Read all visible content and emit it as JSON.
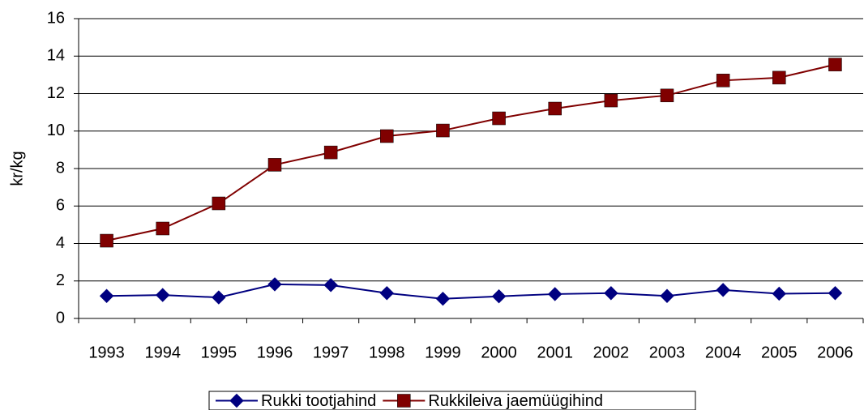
{
  "chart_data": {
    "type": "line",
    "y_label": "kr/kg",
    "categories": [
      "1993",
      "1994",
      "1995",
      "1996",
      "1997",
      "1998",
      "1999",
      "2000",
      "2001",
      "2002",
      "2003",
      "2004",
      "2005",
      "2006"
    ],
    "series": [
      {
        "name": "Rukki tootjahind",
        "color": "#000080",
        "marker": "diamond",
        "values": [
          1.2,
          1.25,
          1.12,
          1.82,
          1.78,
          1.35,
          1.05,
          1.18,
          1.3,
          1.35,
          1.2,
          1.52,
          1.32,
          1.35
        ]
      },
      {
        "name": "Rukkileiva jaemüügihind",
        "color": "#800000",
        "marker": "square",
        "values": [
          4.15,
          4.8,
          6.14,
          8.2,
          8.86,
          9.73,
          10.03,
          10.68,
          11.2,
          11.63,
          11.9,
          12.7,
          12.85,
          13.55
        ]
      }
    ],
    "ylim": [
      0,
      16
    ],
    "yticks": [
      0,
      2,
      4,
      6,
      8,
      10,
      12,
      14,
      16
    ],
    "grid": true,
    "legend": "bottom"
  }
}
